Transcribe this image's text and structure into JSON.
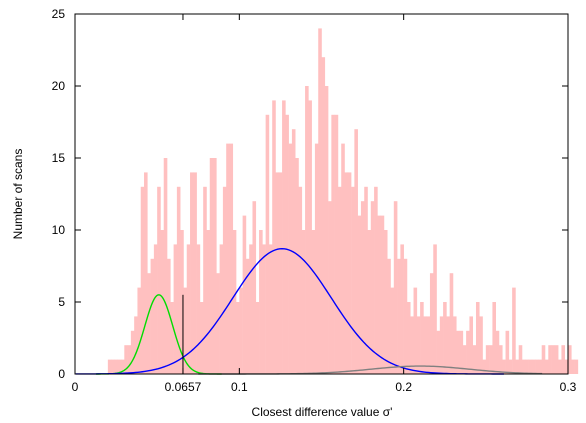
{
  "chart_data": {
    "type": "bar",
    "title": "",
    "xlabel": "Closest difference value σ'",
    "ylabel": "Number of scans",
    "xlim": [
      0,
      0.3
    ],
    "ylim": [
      0,
      25
    ],
    "x_ticks": [
      {
        "value": 0,
        "label": "0"
      },
      {
        "value": 0.0657,
        "label": "0.0657"
      },
      {
        "value": 0.1,
        "label": "0.1"
      },
      {
        "value": 0.2,
        "label": "0.2"
      },
      {
        "value": 0.3,
        "label": "0.3"
      }
    ],
    "y_ticks": [
      {
        "value": 0,
        "label": "0"
      },
      {
        "value": 5,
        "label": "5"
      },
      {
        "value": 10,
        "label": "10"
      },
      {
        "value": 15,
        "label": "15"
      },
      {
        "value": 20,
        "label": "20"
      },
      {
        "value": 25,
        "label": "25"
      }
    ],
    "marked_line": {
      "x": 0.0657
    },
    "grid": false,
    "histogram": {
      "color": "#ffc0c0",
      "bin_width": 0.002,
      "bins_x_start": 0.02,
      "counts": [
        1,
        1,
        1,
        1,
        1,
        2,
        2,
        3,
        4,
        6,
        13,
        14,
        7,
        8,
        9,
        13,
        10,
        15,
        8,
        5,
        9,
        13,
        10,
        6,
        9,
        14,
        14,
        9,
        5,
        13,
        10,
        15,
        15,
        7,
        9,
        13,
        16,
        16,
        10,
        5,
        6,
        11,
        8,
        9,
        12,
        5,
        10,
        9,
        18,
        9,
        19,
        14,
        14,
        19,
        18,
        16,
        17,
        15,
        13,
        10,
        20,
        19,
        10,
        16,
        24,
        22,
        20,
        12,
        18,
        18,
        13,
        16,
        14,
        14,
        13,
        17,
        11,
        12,
        13,
        10,
        12,
        13,
        11,
        11,
        10,
        8,
        6,
        12,
        8,
        9,
        8,
        5,
        4,
        6,
        4,
        5,
        4,
        4,
        7,
        9,
        3,
        4,
        5,
        4,
        7,
        4,
        3,
        3,
        2,
        3,
        4,
        2,
        5,
        4,
        1,
        2,
        2,
        5,
        3,
        2,
        1,
        3,
        1,
        6,
        1,
        2,
        1,
        1,
        1,
        1,
        1,
        1,
        2,
        1,
        2,
        2,
        2,
        1,
        2,
        1,
        2,
        1,
        1,
        0,
        0,
        0,
        0,
        1,
        0,
        0,
        0,
        0,
        0,
        0,
        0,
        0,
        0,
        0,
        0,
        0,
        0,
        1
      ]
    },
    "curves": [
      {
        "color": "#00dd00",
        "amplitude": 5.5,
        "mean": 0.051,
        "sd": 0.0085
      },
      {
        "color": "#0000ff",
        "amplitude": 8.7,
        "mean": 0.126,
        "sd": 0.03
      },
      {
        "color": "#808080",
        "amplitude": 0.55,
        "mean": 0.21,
        "sd": 0.03
      }
    ]
  }
}
